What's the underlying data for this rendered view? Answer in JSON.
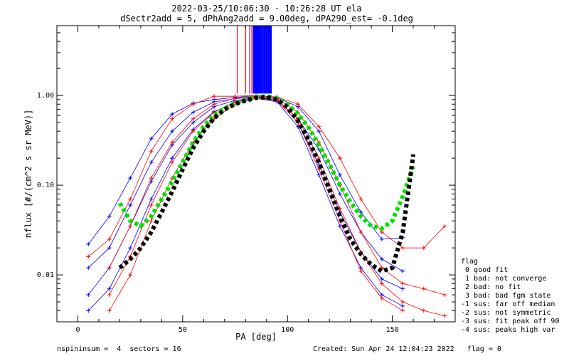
{
  "chart_data": {
    "type": "line",
    "title": "2022-03-25/10:06:30 - 10:26:28 UT ela",
    "subtitle": "dSectr2add = 5, dPhAng2add = 9.00deg, dPA290_est=  -0.1deg",
    "xlabel": "PA [deg]",
    "ylabel": "nflux [#/(cm^2 s sr MeV)]",
    "xlim": [
      -10,
      180
    ],
    "ylim": [
      0.003,
      6.0
    ],
    "yscale": "log",
    "x_ticks": [
      0,
      50,
      100,
      150
    ],
    "x_tick_labels": [
      "0",
      "50",
      "100",
      "150"
    ],
    "y_ticks": [
      0.01,
      0.1,
      1.0
    ],
    "y_tick_labels": [
      "0.01",
      "0.10",
      "1.00"
    ],
    "grid": false,
    "series": [
      {
        "color": "#0000ff",
        "style": "line+cross",
        "points": [
          [
            5,
            0.022
          ],
          [
            15,
            0.045
          ],
          [
            25,
            0.12
          ],
          [
            35,
            0.33
          ],
          [
            45,
            0.62
          ],
          [
            55,
            0.82
          ],
          [
            65,
            0.9
          ],
          [
            75,
            0.95
          ],
          [
            85,
            1.0
          ],
          [
            95,
            0.95
          ],
          [
            105,
            0.75
          ],
          [
            115,
            0.4
          ],
          [
            125,
            0.13
          ],
          [
            135,
            0.05
          ],
          [
            145,
            0.025
          ],
          [
            155,
            0.026
          ]
        ]
      },
      {
        "color": "#0000ff",
        "style": "line+cross",
        "points": [
          [
            5,
            0.012
          ],
          [
            15,
            0.02
          ],
          [
            25,
            0.06
          ],
          [
            35,
            0.18
          ],
          [
            45,
            0.4
          ],
          [
            55,
            0.65
          ],
          [
            65,
            0.85
          ],
          [
            75,
            0.92
          ],
          [
            85,
            0.97
          ],
          [
            95,
            0.9
          ],
          [
            105,
            0.55
          ],
          [
            115,
            0.25
          ],
          [
            125,
            0.08
          ],
          [
            135,
            0.03
          ],
          [
            145,
            0.015
          ],
          [
            155,
            0.011
          ]
        ]
      },
      {
        "color": "#0000ff",
        "style": "line+cross",
        "points": [
          [
            5,
            0.006
          ],
          [
            15,
            0.012
          ],
          [
            25,
            0.035
          ],
          [
            35,
            0.11
          ],
          [
            45,
            0.28
          ],
          [
            55,
            0.5
          ],
          [
            65,
            0.75
          ],
          [
            75,
            0.88
          ],
          [
            85,
            0.95
          ],
          [
            95,
            0.88
          ],
          [
            105,
            0.5
          ],
          [
            115,
            0.17
          ],
          [
            125,
            0.05
          ],
          [
            135,
            0.018
          ],
          [
            145,
            0.009
          ],
          [
            155,
            0.007
          ]
        ]
      },
      {
        "color": "#0000ff",
        "style": "line+cross",
        "points": [
          [
            5,
            0.004
          ],
          [
            15,
            0.007
          ],
          [
            25,
            0.02
          ],
          [
            35,
            0.07
          ],
          [
            45,
            0.2
          ],
          [
            55,
            0.42
          ],
          [
            65,
            0.66
          ],
          [
            75,
            0.84
          ],
          [
            85,
            0.93
          ],
          [
            95,
            0.85
          ],
          [
            105,
            0.45
          ],
          [
            115,
            0.13
          ],
          [
            125,
            0.035
          ],
          [
            135,
            0.012
          ],
          [
            145,
            0.006
          ],
          [
            155,
            0.0045
          ]
        ]
      },
      {
        "color": "#ff0000",
        "style": "line+cross",
        "points": [
          [
            5,
            0.016
          ],
          [
            15,
            0.025
          ],
          [
            25,
            0.07
          ],
          [
            35,
            0.24
          ],
          [
            45,
            0.55
          ],
          [
            55,
            0.8
          ],
          [
            65,
            0.98
          ],
          [
            75,
            0.98
          ],
          [
            85,
            1.0
          ],
          [
            95,
            0.96
          ],
          [
            105,
            0.8
          ],
          [
            115,
            0.45
          ],
          [
            125,
            0.2
          ],
          [
            135,
            0.07
          ],
          [
            145,
            0.03
          ],
          [
            155,
            0.02
          ],
          [
            165,
            0.02
          ],
          [
            175,
            0.035
          ]
        ]
      },
      {
        "color": "#ff0000",
        "style": "line+cross",
        "points": [
          [
            15,
            0.012
          ],
          [
            25,
            0.035
          ],
          [
            35,
            0.12
          ],
          [
            45,
            0.3
          ],
          [
            55,
            0.55
          ],
          [
            65,
            0.8
          ],
          [
            75,
            0.93
          ],
          [
            85,
            0.98
          ],
          [
            95,
            0.93
          ],
          [
            105,
            0.65
          ],
          [
            115,
            0.3
          ],
          [
            125,
            0.1
          ],
          [
            135,
            0.03
          ],
          [
            145,
            0.012
          ],
          [
            155,
            0.008
          ],
          [
            165,
            0.007
          ],
          [
            175,
            0.006
          ]
        ]
      },
      {
        "color": "#ff0000",
        "style": "line+cross",
        "points": [
          [
            15,
            0.006
          ],
          [
            25,
            0.016
          ],
          [
            35,
            0.06
          ],
          [
            45,
            0.18
          ],
          [
            55,
            0.4
          ],
          [
            65,
            0.65
          ],
          [
            75,
            0.85
          ],
          [
            85,
            0.95
          ],
          [
            95,
            0.9
          ],
          [
            105,
            0.55
          ],
          [
            115,
            0.2
          ],
          [
            125,
            0.055
          ],
          [
            135,
            0.018
          ],
          [
            145,
            0.008
          ],
          [
            155,
            0.005
          ],
          [
            165,
            0.004
          ],
          [
            175,
            0.0035
          ]
        ]
      },
      {
        "color": "#ff0000",
        "style": "line+cross",
        "points": [
          [
            15,
            0.004
          ],
          [
            25,
            0.01
          ],
          [
            35,
            0.04
          ],
          [
            45,
            0.12
          ],
          [
            55,
            0.3
          ],
          [
            65,
            0.55
          ],
          [
            75,
            0.8
          ],
          [
            85,
            0.93
          ],
          [
            95,
            0.88
          ],
          [
            105,
            0.5
          ],
          [
            115,
            0.15
          ],
          [
            125,
            0.04
          ],
          [
            135,
            0.011
          ],
          [
            145,
            0.0055
          ],
          [
            155,
            0.004
          ]
        ]
      },
      {
        "color": "#00e000",
        "style": "thick-dash",
        "name": "",
        "points": [
          [
            20,
            0.063
          ],
          [
            25,
            0.04
          ],
          [
            30,
            0.035
          ],
          [
            35,
            0.045
          ],
          [
            40,
            0.07
          ],
          [
            45,
            0.11
          ],
          [
            50,
            0.18
          ],
          [
            55,
            0.3
          ],
          [
            60,
            0.45
          ],
          [
            65,
            0.6
          ],
          [
            70,
            0.72
          ],
          [
            75,
            0.82
          ],
          [
            80,
            0.9
          ],
          [
            85,
            0.96
          ],
          [
            90,
            0.98
          ],
          [
            95,
            0.93
          ],
          [
            100,
            0.8
          ],
          [
            105,
            0.62
          ],
          [
            110,
            0.44
          ],
          [
            115,
            0.28
          ],
          [
            120,
            0.17
          ],
          [
            125,
            0.1
          ],
          [
            130,
            0.065
          ],
          [
            135,
            0.045
          ],
          [
            140,
            0.035
          ],
          [
            145,
            0.033
          ],
          [
            150,
            0.04
          ],
          [
            155,
            0.075
          ],
          [
            160,
            0.16
          ]
        ]
      },
      {
        "color": "#000000",
        "style": "thick-dash",
        "name": "",
        "points": [
          [
            20,
            0.012
          ],
          [
            25,
            0.015
          ],
          [
            30,
            0.02
          ],
          [
            35,
            0.03
          ],
          [
            40,
            0.05
          ],
          [
            45,
            0.085
          ],
          [
            50,
            0.15
          ],
          [
            55,
            0.26
          ],
          [
            60,
            0.4
          ],
          [
            65,
            0.56
          ],
          [
            70,
            0.7
          ],
          [
            75,
            0.8
          ],
          [
            80,
            0.88
          ],
          [
            85,
            0.94
          ],
          [
            90,
            0.96
          ],
          [
            95,
            0.9
          ],
          [
            100,
            0.74
          ],
          [
            105,
            0.52
          ],
          [
            110,
            0.32
          ],
          [
            115,
            0.18
          ],
          [
            120,
            0.09
          ],
          [
            125,
            0.045
          ],
          [
            130,
            0.025
          ],
          [
            135,
            0.017
          ],
          [
            140,
            0.013
          ],
          [
            145,
            0.011
          ],
          [
            150,
            0.012
          ],
          [
            155,
            0.03
          ],
          [
            160,
            0.22
          ]
        ]
      }
    ],
    "vertical_bars": [
      {
        "color": "#0000ff",
        "x": [
          84,
          85,
          86,
          87,
          88,
          89,
          90,
          91,
          92
        ],
        "y_bottom": 1.05
      },
      {
        "color": "#ff0000",
        "x": [
          76,
          80,
          83
        ],
        "y_bottom": 1.05
      },
      {
        "color": "#800080",
        "x": [
          82
        ],
        "y_bottom": 1.05
      }
    ],
    "legend": {
      "placement": "right",
      "title": "flag",
      "entries": [
        " 0 good fit",
        " 1 bad: not converge",
        " 2 bad: no fit",
        " 3 bad: bad fgm state",
        "-1 sus: far off median",
        "-2 sus: not symmetric",
        "-3 sus: fit peak off 90",
        "-4 sus: peaks high var"
      ]
    },
    "footer_left": "nspininsum =  4  sectors = 16",
    "footer_right": "Created: Sun Apr 24 12:04:23 2022   flag = 0"
  }
}
